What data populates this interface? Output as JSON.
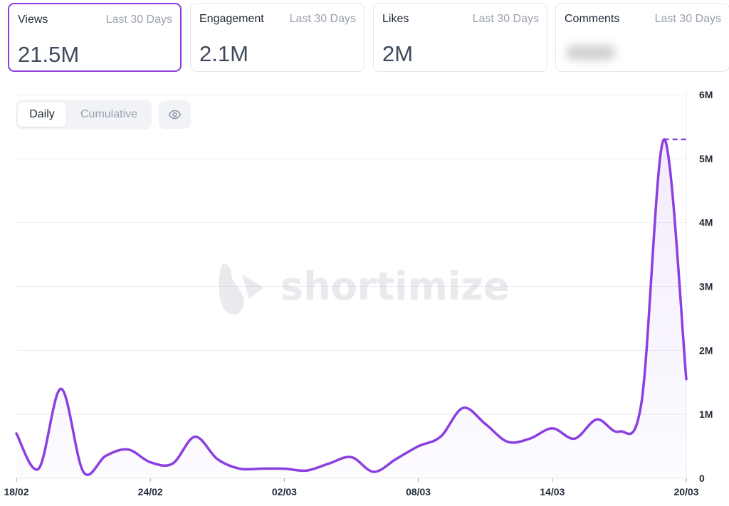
{
  "metrics": [
    {
      "label": "Views",
      "period": "Last 30 Days",
      "value": "21.5M",
      "active": true
    },
    {
      "label": "Engagement",
      "period": "Last 30 Days",
      "value": "2.1M",
      "active": false
    },
    {
      "label": "Likes",
      "period": "Last 30 Days",
      "value": "2M",
      "active": false
    },
    {
      "label": "Comments",
      "period": "Last 30 Days",
      "value": "",
      "blurred": true,
      "active": false
    }
  ],
  "controls": {
    "daily_label": "Daily",
    "cumulative_label": "Cumulative",
    "selected": "Daily",
    "visibility_icon": "eye-icon"
  },
  "watermark": {
    "text": "shortimize"
  },
  "colors": {
    "accent": "#8b3fe0",
    "grid": "#eceef2",
    "axis_text": "#1f2937"
  },
  "chart_data": {
    "type": "line",
    "x_start": "18/02",
    "x_ticks": [
      "18/02",
      "24/02",
      "02/03",
      "08/03",
      "14/03",
      "20/03"
    ],
    "y_ticks": [
      "0",
      "1M",
      "2M",
      "3M",
      "4M",
      "5M",
      "6M"
    ],
    "ylim": [
      0,
      6000000
    ],
    "grid": true,
    "area_fill": true,
    "series": [
      {
        "values": [
          700000,
          150000,
          1400000,
          100000,
          350000,
          450000,
          250000,
          230000,
          650000,
          300000,
          150000,
          150000,
          150000,
          120000,
          230000,
          330000,
          100000,
          300000,
          500000,
          650000,
          1100000,
          850000,
          570000,
          620000,
          780000,
          620000,
          920000,
          730000,
          1200000,
          5300000,
          1550000
        ],
        "max_marker": 5300000
      }
    ]
  }
}
